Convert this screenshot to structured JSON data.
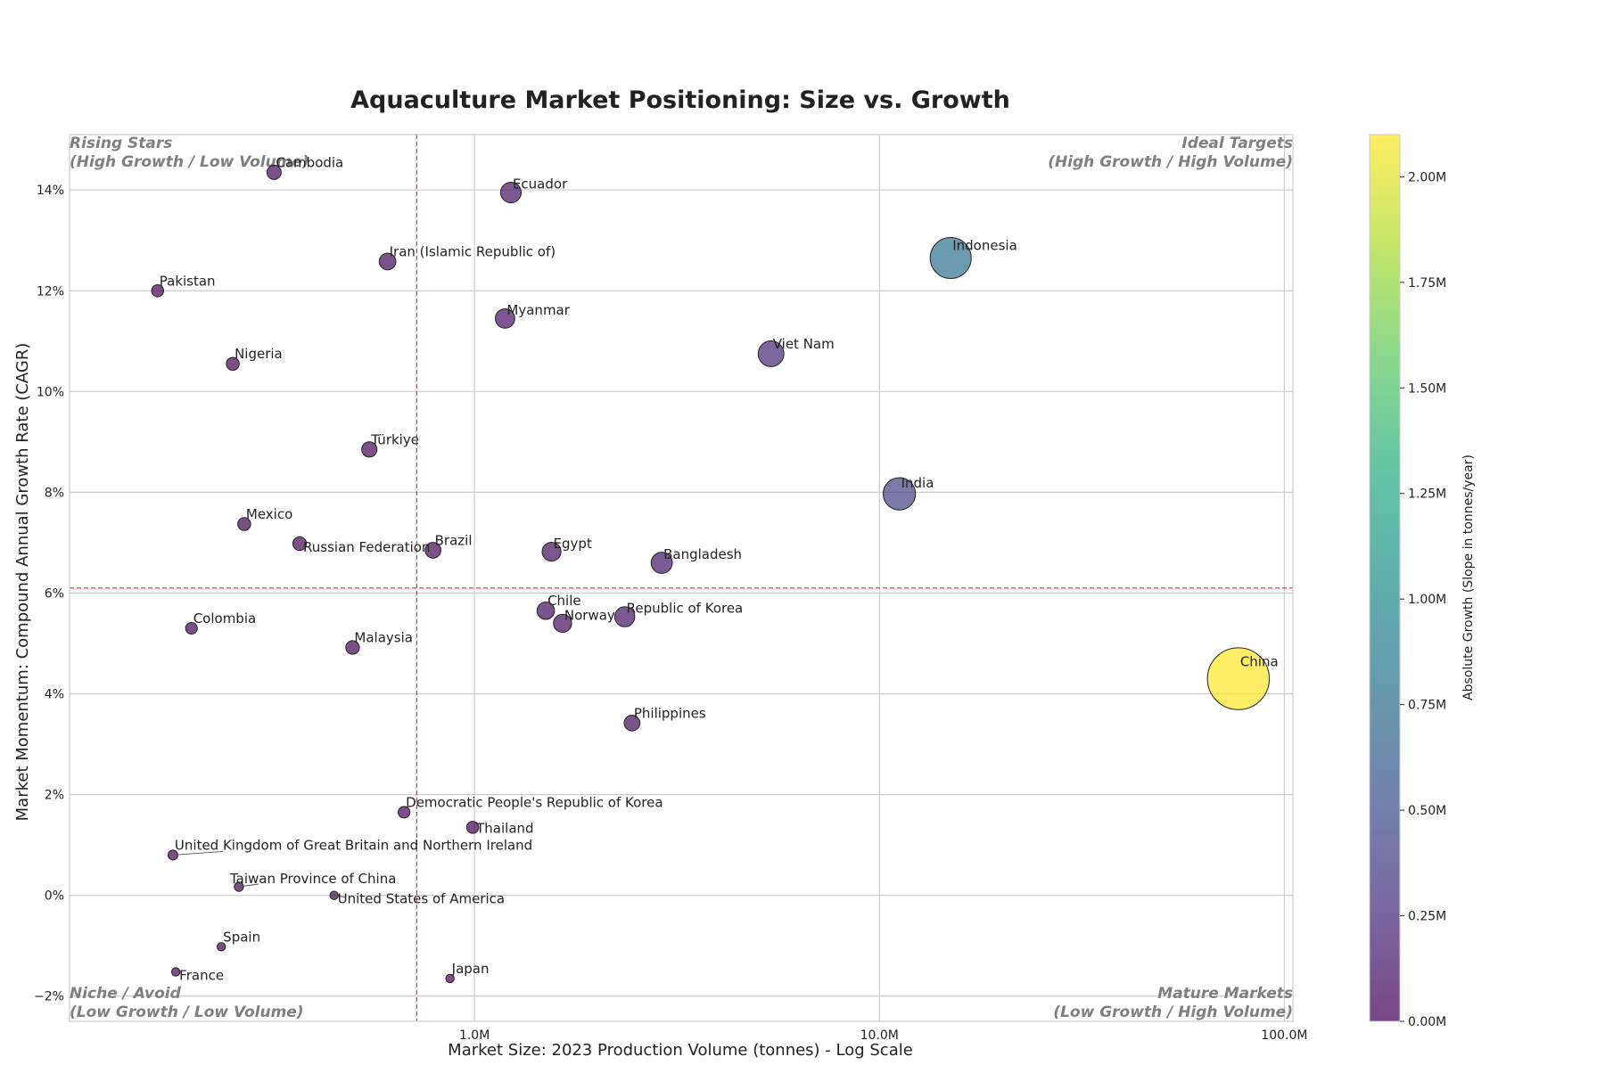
{
  "chart_data": {
    "type": "scatter",
    "title": "Aquaculture Market Positioning: Size vs. Growth",
    "xlabel": "Market Size: 2023 Production Volume (tonnes) - Log Scale",
    "ylabel": "Market Momentum: Compound Annual Growth Rate (CAGR)",
    "x_scale": "log",
    "xlim": [
      100000,
      105000000
    ],
    "ylim": [
      -2.5,
      15.1
    ],
    "x_ticks": [
      {
        "value": 1000000,
        "label": "1.0M"
      },
      {
        "value": 10000000,
        "label": "10.0M"
      },
      {
        "value": 100000000,
        "label": "100.0M"
      }
    ],
    "y_ticks": [
      {
        "value": -2,
        "label": "−2%"
      },
      {
        "value": 0,
        "label": "0%"
      },
      {
        "value": 2,
        "label": "2%"
      },
      {
        "value": 4,
        "label": "4%"
      },
      {
        "value": 6,
        "label": "6%"
      },
      {
        "value": 8,
        "label": "8%"
      },
      {
        "value": 10,
        "label": "10%"
      },
      {
        "value": 12,
        "label": "12%"
      },
      {
        "value": 14,
        "label": "14%"
      }
    ],
    "grid": true,
    "reference_lines": {
      "x": 720000,
      "y": 6.1
    },
    "quadrants": [
      {
        "position": "top-left",
        "title": "Rising Stars",
        "subtitle": "(High Growth / Low Volume)"
      },
      {
        "position": "top-right",
        "title": "Ideal Targets",
        "subtitle": "(High Growth / High Volume)"
      },
      {
        "position": "bottom-left",
        "title": "Niche / Avoid",
        "subtitle": "(Low Growth / Low Volume)"
      },
      {
        "position": "bottom-right",
        "title": "Mature Markets",
        "subtitle": "(Low Growth / High Volume)"
      }
    ],
    "colorbar": {
      "label": "Absolute Growth (Slope in tonnes/year)",
      "min": 0,
      "max": 2100000,
      "ticks": [
        {
          "value": 0,
          "label": "0.00M"
        },
        {
          "value": 250000,
          "label": "0.25M"
        },
        {
          "value": 500000,
          "label": "0.50M"
        },
        {
          "value": 750000,
          "label": "0.75M"
        },
        {
          "value": 1000000,
          "label": "1.00M"
        },
        {
          "value": 1250000,
          "label": "1.25M"
        },
        {
          "value": 1500000,
          "label": "1.50M"
        },
        {
          "value": 1750000,
          "label": "1.75M"
        },
        {
          "value": 2000000,
          "label": "2.00M"
        }
      ]
    },
    "points": [
      {
        "name": "China",
        "x": 77000000,
        "y": 4.3,
        "slope": 2100000,
        "label_pos": "right"
      },
      {
        "name": "Indonesia",
        "x": 15000000,
        "y": 12.65,
        "slope": 780000,
        "label_pos": "right"
      },
      {
        "name": "India",
        "x": 11200000,
        "y": 7.97,
        "slope": 420000,
        "label_pos": "right"
      },
      {
        "name": "Viet Nam",
        "x": 5400000,
        "y": 10.75,
        "slope": 220000,
        "label_pos": "right"
      },
      {
        "name": "Bangladesh",
        "x": 2900000,
        "y": 6.6,
        "slope": 120000,
        "label_pos": "right"
      },
      {
        "name": "Egypt",
        "x": 1550000,
        "y": 6.82,
        "slope": 80000,
        "label_pos": "right"
      },
      {
        "name": "Chile",
        "x": 1500000,
        "y": 5.65,
        "slope": 60000,
        "label_pos": "right"
      },
      {
        "name": "Norway",
        "x": 1650000,
        "y": 5.4,
        "slope": 70000,
        "label_pos": "right-below"
      },
      {
        "name": "Republic of Korea",
        "x": 2350000,
        "y": 5.53,
        "slope": 100000,
        "label_pos": "right-center"
      },
      {
        "name": "Philippines",
        "x": 2450000,
        "y": 3.42,
        "slope": 40000,
        "label_pos": "right"
      },
      {
        "name": "Ecuador",
        "x": 1230000,
        "y": 13.95,
        "slope": 110000,
        "label_pos": "right"
      },
      {
        "name": "Myanmar",
        "x": 1190000,
        "y": 11.45,
        "slope": 90000,
        "label_pos": "right"
      },
      {
        "name": "Iran (Islamic Republic of)",
        "x": 610000,
        "y": 12.58,
        "slope": 50000,
        "label_pos": "right"
      },
      {
        "name": "Brazil",
        "x": 790000,
        "y": 6.85,
        "slope": 40000,
        "label_pos": "right"
      },
      {
        "name": "Türkiye",
        "x": 550000,
        "y": 8.85,
        "slope": 35000,
        "label_pos": "right"
      },
      {
        "name": "Malaysia",
        "x": 500000,
        "y": 4.92,
        "slope": 20000,
        "label_pos": "right"
      },
      {
        "name": "Russian Federation",
        "x": 370000,
        "y": 6.98,
        "slope": 20000,
        "label_pos": "right-below"
      },
      {
        "name": "Mexico",
        "x": 270000,
        "y": 7.37,
        "slope": 15000,
        "label_pos": "right"
      },
      {
        "name": "Nigeria",
        "x": 253000,
        "y": 10.55,
        "slope": 15000,
        "label_pos": "right"
      },
      {
        "name": "Pakistan",
        "x": 165000,
        "y": 12.0,
        "slope": 10000,
        "label_pos": "right"
      },
      {
        "name": "Cambodia",
        "x": 320000,
        "y": 14.35,
        "slope": 25000,
        "label_pos": "right"
      },
      {
        "name": "Colombia",
        "x": 200000,
        "y": 5.3,
        "slope": 8000,
        "label_pos": "right"
      },
      {
        "name": "Democratic People's Republic of Korea",
        "x": 670000,
        "y": 1.65,
        "slope": 8000,
        "label_pos": "right"
      },
      {
        "name": "Thailand",
        "x": 990000,
        "y": 1.35,
        "slope": 10000,
        "label_pos": "right-center"
      },
      {
        "name": "United Kingdom of Great Britain and Northern Ireland",
        "x": 180000,
        "y": 0.8,
        "slope": 1500,
        "label_pos": "right"
      },
      {
        "name": "Taiwan Province of China",
        "x": 262000,
        "y": 0.17,
        "slope": 500,
        "label_pos": "offset-up"
      },
      {
        "name": "United States of America",
        "x": 450000,
        "y": 0.0,
        "slope": 0,
        "label_pos": "right-below"
      },
      {
        "name": "Spain",
        "x": 237000,
        "y": -1.02,
        "slope": 0,
        "label_pos": "right"
      },
      {
        "name": "France",
        "x": 183000,
        "y": -1.52,
        "slope": 0,
        "label_pos": "right-below"
      },
      {
        "name": "Japan",
        "x": 870000,
        "y": -1.65,
        "slope": 0,
        "label_pos": "right"
      }
    ]
  }
}
